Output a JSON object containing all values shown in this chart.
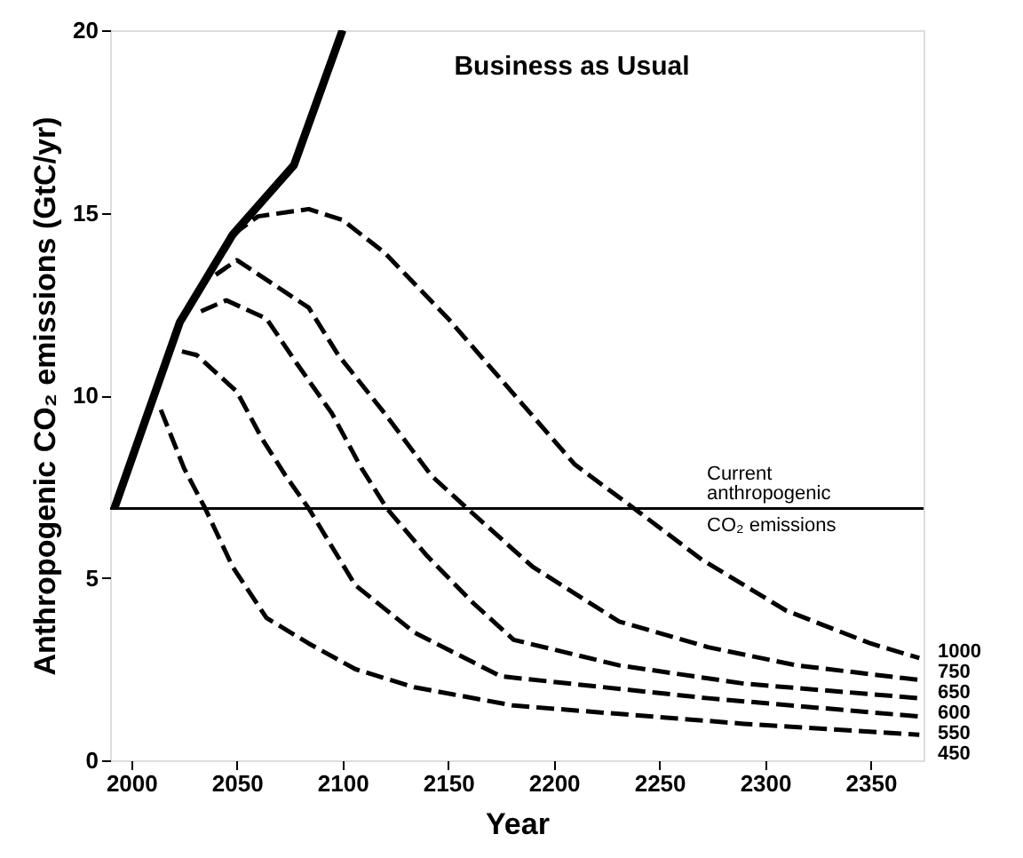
{
  "chart_data": {
    "type": "line",
    "xlabel": "Year",
    "ylabel": "Anthropogenic CO₂ emissions (GtC/yr)",
    "xlim": [
      1990,
      2375
    ],
    "ylim": [
      0,
      20
    ],
    "xticks": [
      2000,
      2050,
      2100,
      2150,
      2200,
      2250,
      2300,
      2350
    ],
    "yticks": [
      0,
      5,
      10,
      15,
      20
    ],
    "grid": false,
    "series": [
      {
        "color": "#000000",
        "line_style": "solid",
        "x": [
          1992,
          2023,
          2048,
          2077,
          2100
        ],
        "values": [
          6.9,
          12.0,
          14.4,
          16.3,
          20.0
        ]
      },
      {
        "color": "#000000",
        "line_style": "dashed",
        "x": [
          2048,
          2060,
          2084,
          2100,
          2120,
          2150,
          2180,
          2210,
          2238,
          2270,
          2310,
          2350,
          2373
        ],
        "values": [
          14.4,
          14.9,
          15.1,
          14.8,
          13.9,
          12.1,
          10.1,
          8.1,
          6.9,
          5.5,
          4.1,
          3.2,
          2.8
        ]
      },
      {
        "color": "#000000",
        "line_style": "dashed",
        "x": [
          2040,
          2050,
          2084,
          2098,
          2120,
          2142,
          2159,
          2190,
          2231,
          2273,
          2315,
          2373
        ],
        "values": [
          13.3,
          13.7,
          12.4,
          11.1,
          9.5,
          7.8,
          6.9,
          5.3,
          3.8,
          3.1,
          2.6,
          2.2
        ]
      },
      {
        "color": "#000000",
        "line_style": "dashed",
        "x": [
          2033,
          2045,
          2064,
          2078,
          2095,
          2109,
          2121,
          2140,
          2162,
          2181,
          2231,
          2290,
          2373
        ],
        "values": [
          12.3,
          12.6,
          12.1,
          10.9,
          9.5,
          8.0,
          6.9,
          5.6,
          4.3,
          3.3,
          2.6,
          2.1,
          1.7
        ]
      },
      {
        "color": "#000000",
        "line_style": "dashed",
        "x": [
          2024,
          2031,
          2050,
          2062,
          2073,
          2084,
          2106,
          2134,
          2175,
          2273,
          2373
        ],
        "values": [
          11.2,
          11.1,
          10.1,
          8.8,
          7.8,
          6.9,
          4.8,
          3.5,
          2.3,
          1.7,
          1.2
        ]
      },
      {
        "color": "#000000",
        "line_style": "dashed",
        "x": [
          2014,
          2025,
          2035,
          2048,
          2064,
          2084,
          2106,
          2134,
          2181,
          2290,
          2373
        ],
        "values": [
          9.6,
          8.0,
          6.9,
          5.3,
          3.9,
          3.2,
          2.5,
          2.0,
          1.5,
          1.0,
          0.7
        ]
      }
    ],
    "ref_lines": [
      {
        "axis": "y",
        "value": 6.9,
        "label": "Current\nanthropogenic\nCO₂ emissions",
        "color": "#000000",
        "line_style": "solid"
      }
    ],
    "annotations": [
      "Business as Usual",
      "1000",
      "750",
      "650",
      "600",
      "550",
      "450"
    ]
  }
}
